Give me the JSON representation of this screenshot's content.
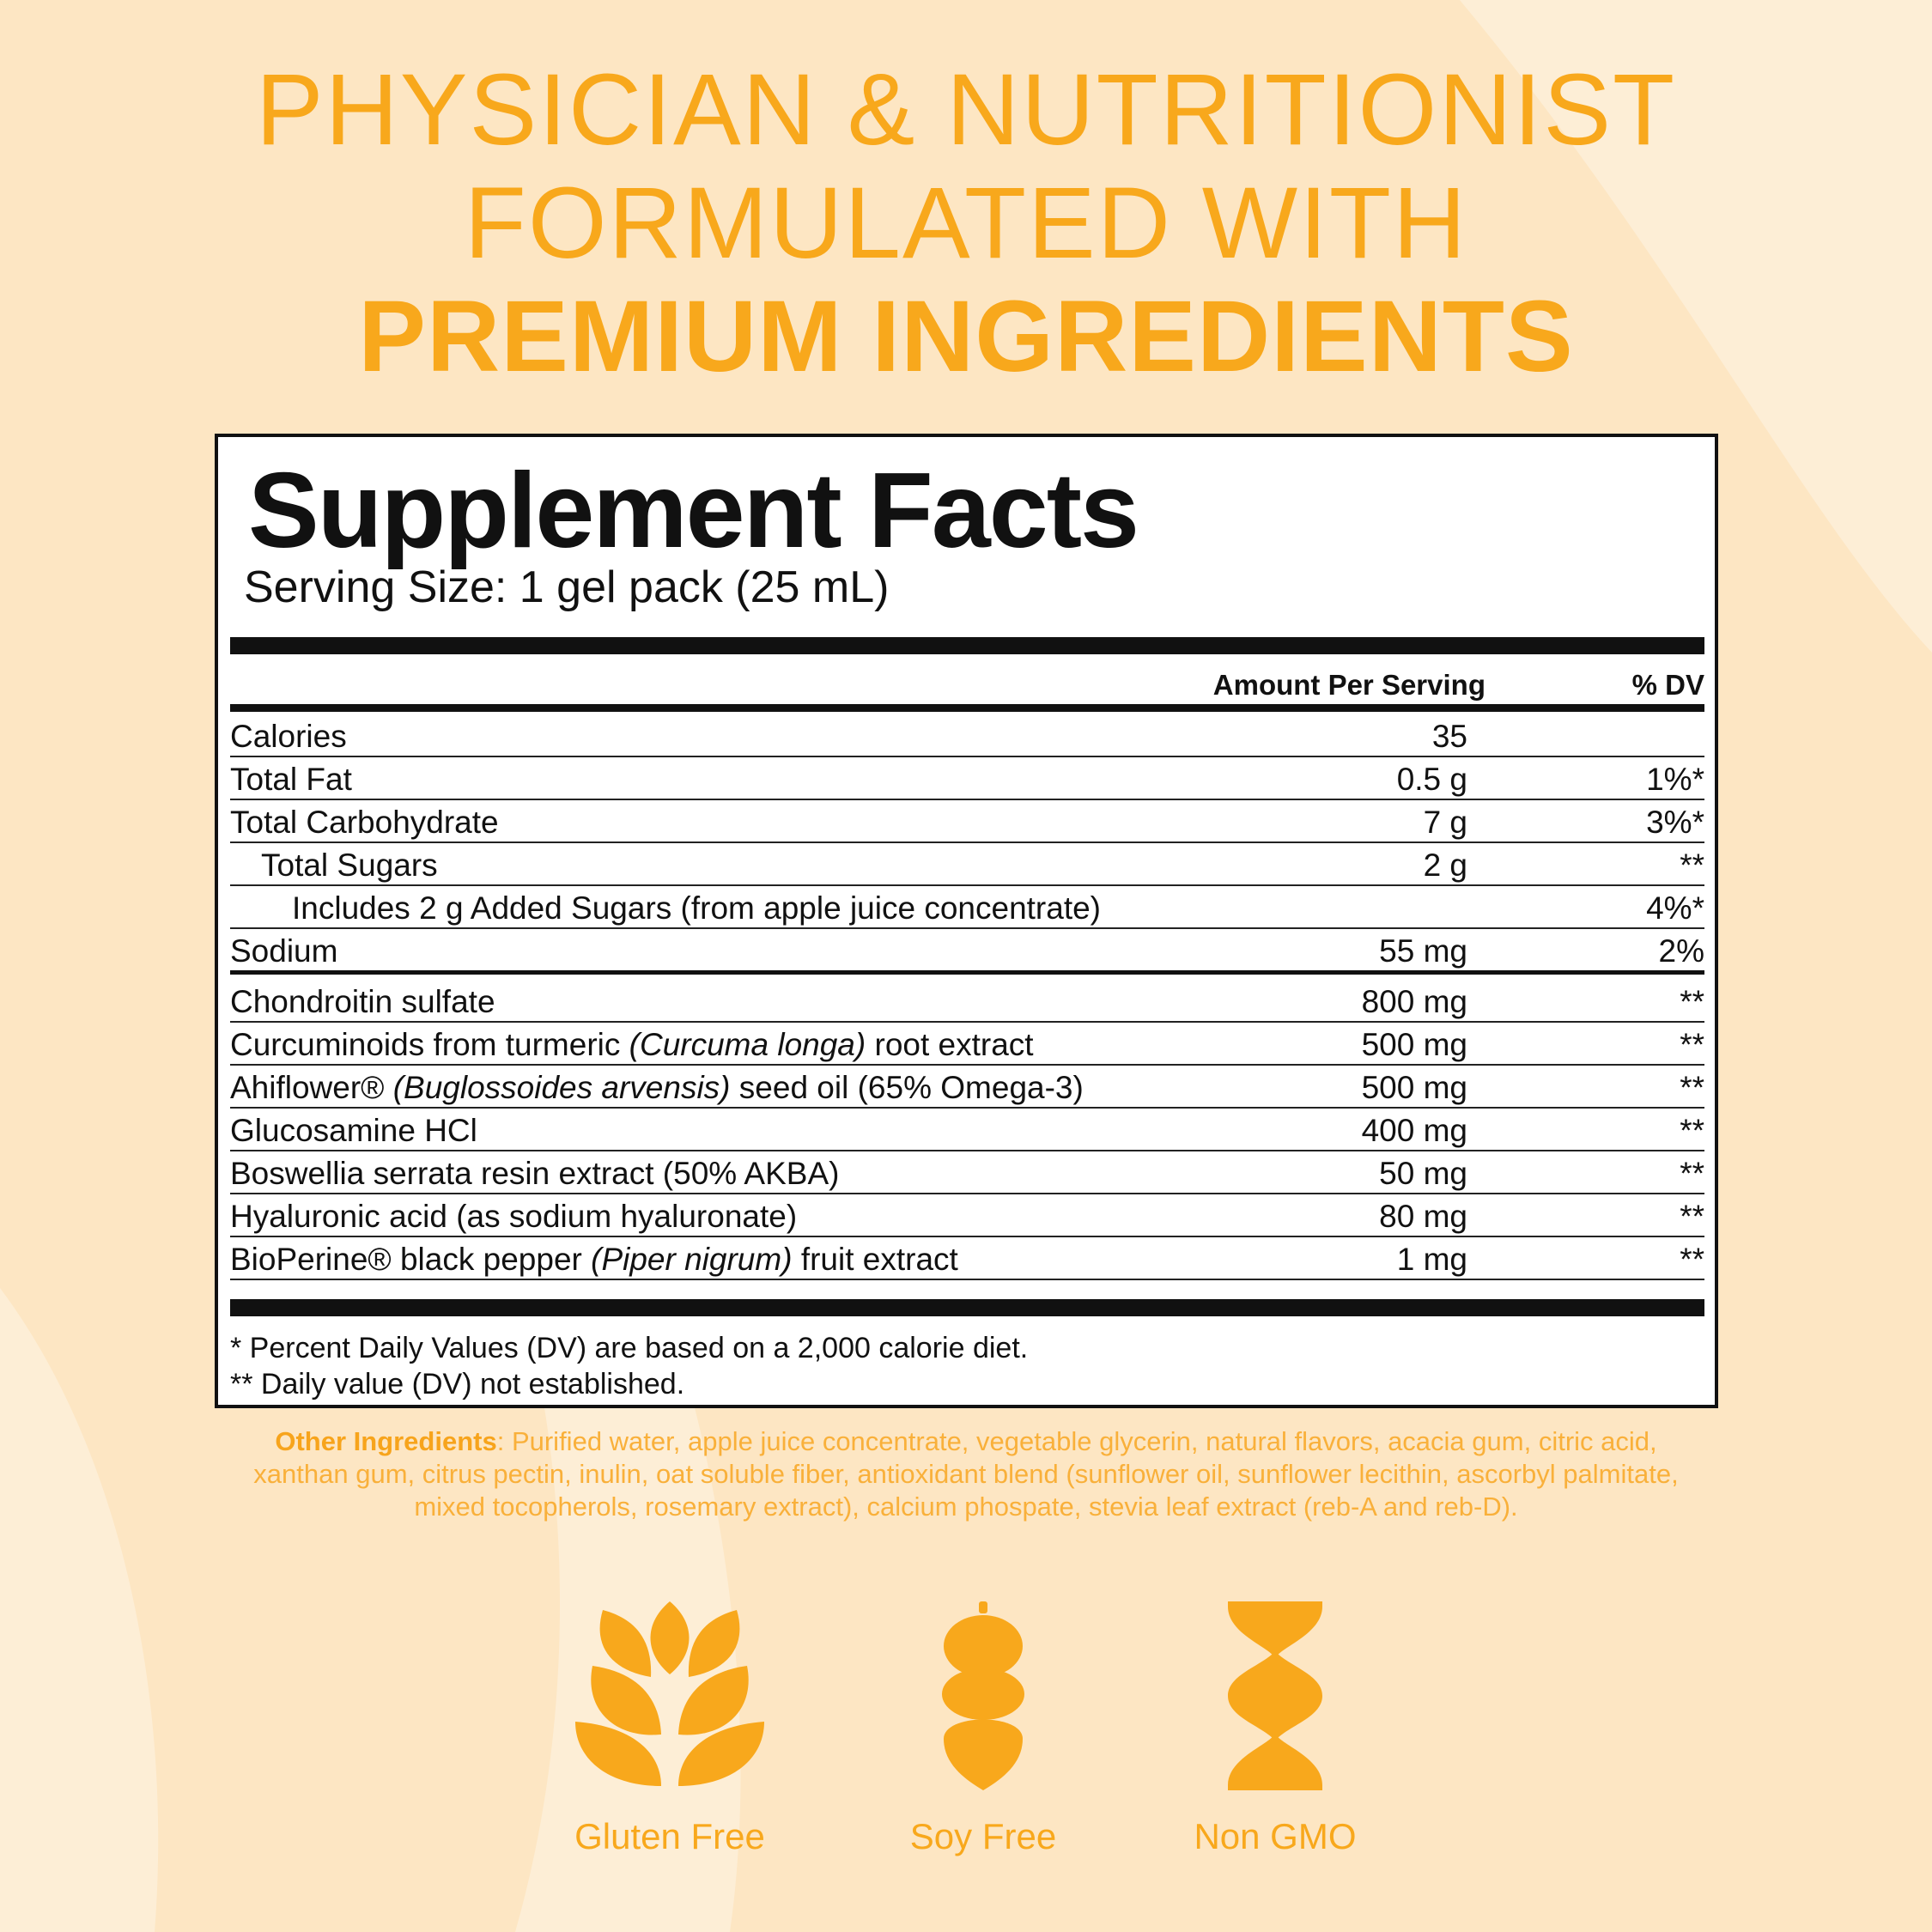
{
  "headline": {
    "line1": "PHYSICIAN & NUTRITIONIST",
    "line2": "FORMULATED WITH",
    "line3": "PREMIUM INGREDIENTS"
  },
  "facts": {
    "title": "Supplement Facts",
    "serving_size": "Serving Size: 1 gel pack (25 mL)",
    "col_amount": "Amount Per Serving",
    "col_dv": "% DV",
    "rows": [
      {
        "name": "Calories",
        "amount": "35",
        "dv": ""
      },
      {
        "name": "Total Fat",
        "amount": "0.5 g",
        "dv": "1%*"
      },
      {
        "name": "Total Carbohydrate",
        "amount": "7 g",
        "dv": "3%*"
      },
      {
        "name": "Total Sugars",
        "amount": "2 g",
        "dv": "**"
      },
      {
        "name": "Includes 2 g Added Sugars (from apple juice concentrate)",
        "amount": "",
        "dv": "4%*"
      },
      {
        "name": "Sodium",
        "amount": "55 mg",
        "dv": "2%"
      },
      {
        "name": "Chondroitin sulfate",
        "amount": "800 mg",
        "dv": "**"
      },
      {
        "name": "Curcuminoids from turmeric",
        "name_italic": "(Curcuma longa)",
        "name_tail": "root extract",
        "amount": "500 mg",
        "dv": "**"
      },
      {
        "name": "Ahiflower®",
        "name_italic": "(Buglossoides arvensis)",
        "name_tail": "seed oil (65% Omega-3)",
        "amount": "500 mg",
        "dv": "**"
      },
      {
        "name": "Glucosamine HCl",
        "amount": "400 mg",
        "dv": "**"
      },
      {
        "name": "Boswellia serrata resin extract (50% AKBA)",
        "amount": "50 mg",
        "dv": "**"
      },
      {
        "name": "Hyaluronic acid (as sodium hyaluronate)",
        "amount": "80 mg",
        "dv": "**"
      },
      {
        "name": "BioPerine® black pepper",
        "name_italic": "(Piper nigrum)",
        "name_tail": "fruit extract",
        "amount": "1 mg",
        "dv": "**"
      }
    ],
    "footnote1": "* Percent Daily Values (DV) are based on a 2,000 calorie diet.",
    "footnote2": "** Daily value (DV) not established."
  },
  "other_ingredients": {
    "label": "Other Ingredients",
    "text": ": Purified water, apple juice concentrate, vegetable glycerin, natural flavors, acacia gum, citric acid, xanthan gum, citrus pectin, inulin, oat soluble fiber, antioxidant blend (sunflower oil, sunflower lecithin, ascorbyl palmitate, mixed tocopherols, rosemary extract), calcium phospate, stevia leaf extract (reb-A and reb-D)."
  },
  "badges": [
    {
      "label": "Gluten Free",
      "icon": "wheat-icon"
    },
    {
      "label": "Soy Free",
      "icon": "soybean-icon"
    },
    {
      "label": "Non GMO",
      "icon": "dna-icon"
    }
  ],
  "colors": {
    "background": "#fde6c3",
    "accent": "#f8a81c"
  }
}
